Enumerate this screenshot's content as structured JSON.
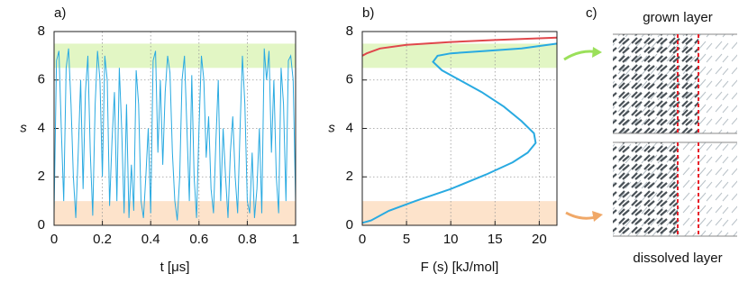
{
  "chart_data": [
    {
      "type": "line",
      "label": "a)",
      "xlabel": "t  [μs]",
      "ylabel": "s",
      "xlim": [
        0,
        1
      ],
      "ylim": [
        0,
        8
      ],
      "xticks": [
        0,
        0.2,
        0.4,
        0.6,
        0.8,
        1
      ],
      "yticks": [
        0,
        2,
        4,
        6,
        8
      ],
      "grid": true,
      "bands": [
        {
          "from": 6.5,
          "to": 7.5,
          "color": "#e2f6c4"
        },
        {
          "from": 0,
          "to": 1,
          "color": "#fde3cb"
        }
      ],
      "x": [
        0,
        0.01,
        0.02,
        0.03,
        0.04,
        0.05,
        0.06,
        0.07,
        0.08,
        0.09,
        0.1,
        0.11,
        0.12,
        0.13,
        0.14,
        0.15,
        0.16,
        0.17,
        0.18,
        0.19,
        0.2,
        0.21,
        0.22,
        0.23,
        0.24,
        0.25,
        0.26,
        0.27,
        0.28,
        0.29,
        0.3,
        0.31,
        0.32,
        0.33,
        0.34,
        0.35,
        0.36,
        0.37,
        0.38,
        0.39,
        0.4,
        0.41,
        0.42,
        0.43,
        0.44,
        0.45,
        0.46,
        0.47,
        0.48,
        0.49,
        0.5,
        0.51,
        0.52,
        0.53,
        0.54,
        0.55,
        0.56,
        0.57,
        0.58,
        0.59,
        0.6,
        0.61,
        0.62,
        0.63,
        0.64,
        0.65,
        0.66,
        0.67,
        0.68,
        0.69,
        0.7,
        0.71,
        0.72,
        0.73,
        0.74,
        0.75,
        0.76,
        0.77,
        0.78,
        0.79,
        0.8,
        0.81,
        0.82,
        0.83,
        0.84,
        0.85,
        0.86,
        0.87,
        0.88,
        0.89,
        0.9,
        0.91,
        0.92,
        0.93,
        0.94,
        0.95,
        0.96,
        0.97,
        0.98,
        0.99,
        1
      ],
      "series": [
        {
          "color": "#29aae1",
          "values": [
            0.5,
            6.8,
            7.2,
            4,
            1,
            6.5,
            7.3,
            5,
            2,
            0.3,
            3,
            6,
            1.5,
            5.5,
            7,
            3,
            0.4,
            5,
            7.2,
            6,
            2,
            7,
            6,
            0.8,
            3.5,
            5.5,
            1,
            6.5,
            4,
            0.5,
            5,
            0.3,
            2.5,
            0.6,
            6.4,
            5,
            1,
            0.3,
            2,
            4,
            0.5,
            6.8,
            7.2,
            3,
            6,
            2.5,
            5.5,
            7,
            6.3,
            3,
            1,
            0.2,
            2,
            6,
            7,
            4,
            1,
            6.2,
            2,
            0.3,
            4,
            7,
            6,
            2.8,
            4.5,
            1.5,
            0.5,
            3.5,
            6,
            1,
            4,
            2,
            0.3,
            3,
            4.5,
            2,
            0.5,
            4,
            7,
            5,
            1,
            0.5,
            3,
            0.3,
            1.5,
            4,
            0.5,
            7.3,
            6,
            7.2,
            3,
            6,
            2,
            0.5,
            6.5,
            5,
            1,
            6.8,
            7,
            6,
            1
          ]
        }
      ]
    },
    {
      "type": "line",
      "label": "b)",
      "xlabel": "F (s) [kJ/mol]",
      "ylabel": "s",
      "xlim": [
        0,
        22
      ],
      "ylim": [
        0,
        8
      ],
      "xticks": [
        0,
        5,
        10,
        15,
        20
      ],
      "yticks": [
        0,
        2,
        4,
        6,
        8
      ],
      "grid": true,
      "bands": [
        {
          "from": 6.5,
          "to": 7.5,
          "color": "#e2f6c4"
        },
        {
          "from": 0,
          "to": 1,
          "color": "#fde3cb"
        }
      ],
      "series": [
        {
          "color": "#e0474c",
          "x": [
            0,
            0.5,
            2,
            5,
            10,
            15,
            22
          ],
          "values": [
            7,
            7.1,
            7.3,
            7.45,
            7.57,
            7.65,
            7.75
          ]
        },
        {
          "color": "#29aae1",
          "x": [
            0,
            1,
            3,
            6,
            10,
            14,
            17,
            18.7,
            19.6,
            19.4,
            18,
            16,
            13.5,
            11,
            9,
            8,
            8.5,
            10,
            14,
            18,
            22
          ],
          "values": [
            0.1,
            0.2,
            0.6,
            1,
            1.5,
            2.1,
            2.6,
            3,
            3.4,
            3.8,
            4.3,
            4.9,
            5.5,
            6,
            6.4,
            6.75,
            7,
            7.1,
            7.2,
            7.3,
            7.5
          ]
        }
      ]
    }
  ],
  "panel_c": {
    "label": "c)",
    "top": "grown layer",
    "bottom": "dissolved layer"
  }
}
